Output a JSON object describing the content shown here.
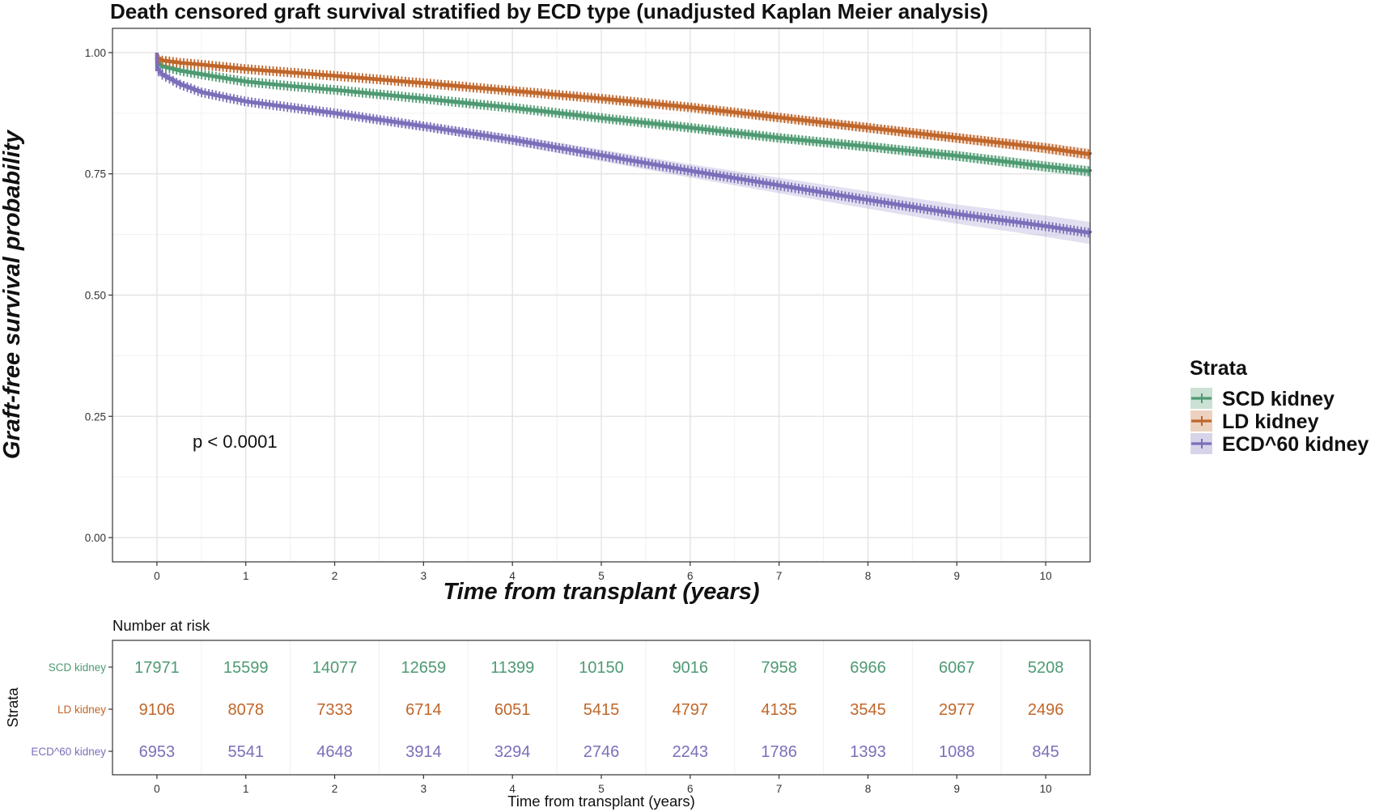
{
  "chart_data": {
    "type": "line",
    "title": "Death censored graft survival stratified by ECD type (unadjusted Kaplan Meier analysis)",
    "xlabel": "Time from transplant (years)",
    "ylabel": "Graft-free survival probability",
    "xlim": [
      -0.5,
      10.5
    ],
    "ylim": [
      -0.05,
      1.05
    ],
    "x_ticks": [
      "0",
      "1",
      "2",
      "3",
      "4",
      "5",
      "6",
      "7",
      "8",
      "9",
      "10"
    ],
    "y_ticks": [
      "0.00",
      "0.25",
      "0.50",
      "0.75",
      "1.00"
    ],
    "grid": true,
    "annotation": "p < 0.0001",
    "legend": {
      "title": "Strata",
      "position": "right",
      "entries": [
        "SCD kidney",
        "LD kidney",
        "ECD^60 kidney"
      ]
    },
    "series": [
      {
        "name": "SCD kidney",
        "color": "#4e9a72",
        "x": [
          0,
          0.05,
          0.25,
          0.5,
          1,
          1.5,
          2,
          3,
          4,
          5,
          6,
          7,
          8,
          9,
          10,
          10.5
        ],
        "y": [
          0.978,
          0.972,
          0.963,
          0.955,
          0.94,
          0.931,
          0.923,
          0.905,
          0.886,
          0.865,
          0.845,
          0.824,
          0.806,
          0.787,
          0.765,
          0.755
        ]
      },
      {
        "name": "LD kidney",
        "color": "#c0662a",
        "x": [
          0,
          0.05,
          0.25,
          0.5,
          1,
          2,
          3,
          4,
          5,
          6,
          7,
          8,
          9,
          10,
          10.5
        ],
        "y": [
          0.988,
          0.984,
          0.979,
          0.975,
          0.966,
          0.952,
          0.937,
          0.921,
          0.905,
          0.887,
          0.866,
          0.845,
          0.824,
          0.803,
          0.79
        ]
      },
      {
        "name": "ECD^60 kidney",
        "color": "#7b6fba",
        "x": [
          0,
          0.05,
          0.25,
          0.5,
          1,
          1.5,
          2,
          3,
          4,
          5,
          6,
          7,
          8,
          9,
          10,
          10.5
        ],
        "y": [
          0.965,
          0.955,
          0.935,
          0.918,
          0.899,
          0.887,
          0.875,
          0.848,
          0.82,
          0.788,
          0.756,
          0.726,
          0.696,
          0.667,
          0.642,
          0.628
        ]
      }
    ],
    "risk_table": {
      "title": "Number at risk",
      "ylabel": "Strata",
      "xlabel": "Time from transplant (years)",
      "times": [
        "0",
        "1",
        "2",
        "3",
        "4",
        "5",
        "6",
        "7",
        "8",
        "9",
        "10"
      ],
      "rows": [
        {
          "name": "SCD kidney",
          "color": "#4e9a72",
          "values": [
            "17971",
            "15599",
            "14077",
            "12659",
            "11399",
            "10150",
            "9016",
            "7958",
            "6966",
            "6067",
            "5208"
          ]
        },
        {
          "name": "LD kidney",
          "color": "#c0662a",
          "values": [
            "9106",
            "8078",
            "7333",
            "6714",
            "6051",
            "5415",
            "4797",
            "4135",
            "3545",
            "2977",
            "2496"
          ]
        },
        {
          "name": "ECD^60 kidney",
          "color": "#7b6fba",
          "values": [
            "6953",
            "5541",
            "4648",
            "3914",
            "3294",
            "2746",
            "2243",
            "1786",
            "1393",
            "1088",
            "845"
          ]
        }
      ]
    }
  }
}
